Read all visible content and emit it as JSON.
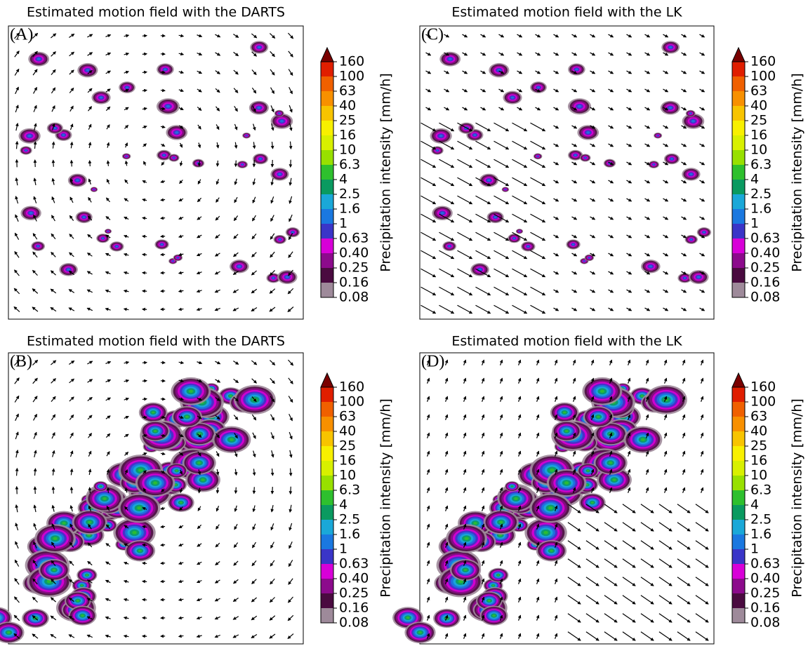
{
  "panels": [
    {
      "title": "Estimated motion field with the DARTS",
      "label": "(A)"
    },
    {
      "title": "Estimated motion field with the LK",
      "label": "(C)"
    },
    {
      "title": "Estimated motion field with the DARTS",
      "label": "(B)"
    },
    {
      "title": "Estimated motion field with the LK",
      "label": "(D)"
    }
  ],
  "colorbar": {
    "label": "Precipitation intensity [mm/h]",
    "ticks": [
      0.08,
      0.16,
      0.25,
      {
        "value": 0.4,
        "label": "0.40"
      },
      0.63,
      1,
      1.6,
      2.5,
      4,
      6.3,
      10,
      16,
      25,
      40,
      63,
      100,
      160
    ],
    "colors": [
      "#9e8a9a",
      "#4a0a40",
      "#8c0a8c",
      "#d800d8",
      "#3a35c8",
      "#1a78e0",
      "#1aa8d8",
      "#0a9a60",
      "#2ec02e",
      "#98e000",
      "#d8f000",
      "#f8f000",
      "#f8c400",
      "#f89000",
      "#f06000",
      "#e01e00"
    ],
    "extend_color": "#7a0000"
  }
}
